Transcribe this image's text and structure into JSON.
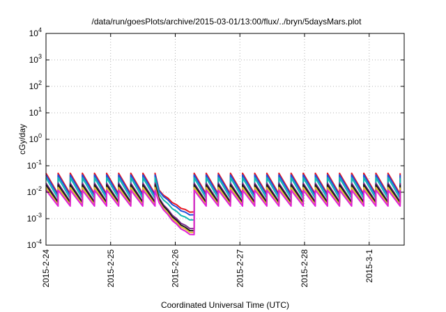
{
  "chart_data": {
    "type": "line",
    "title": "/data/run/goesPlots/archive/2015-03-01/13:00/flux/../bryn/5daysMars.plot",
    "xlabel": "Coordinated Universal Time (UTC)",
    "ylabel": "cGy/day",
    "y_scale": "log",
    "ylim": [
      0.0001,
      10000
    ],
    "xlim": [
      "2015-02-24T00:00",
      "2015-03-01T13:00"
    ],
    "grid": true,
    "x_tick_labels": [
      "2015-2-24",
      "2015-2-25",
      "2015-2-26",
      "2015-2-27",
      "2015-2-28",
      "2015-3-1"
    ],
    "y_tick_labels": [
      {
        "base": "10",
        "exp": "-4",
        "value": 0.0001
      },
      {
        "base": "10",
        "exp": "-3",
        "value": 0.001
      },
      {
        "base": "10",
        "exp": "-2",
        "value": 0.01
      },
      {
        "base": "10",
        "exp": "-1",
        "value": 0.1
      },
      {
        "base": "10",
        "exp": "0",
        "value": 1
      },
      {
        "base": "10",
        "exp": "1",
        "value": 10
      },
      {
        "base": "10",
        "exp": "2",
        "value": 100
      },
      {
        "base": "10",
        "exp": "3",
        "value": 1000
      },
      {
        "base": "10",
        "exp": "4",
        "value": 10000
      }
    ],
    "sawtooth_period_hours": 4.5,
    "gap": {
      "start": "2015-02-25T18:00",
      "end": "2015-02-26T07:00"
    },
    "series": [
      {
        "color": "#e8141e",
        "peak": 0.052,
        "trough": 0.0085,
        "gap_start": 0.012,
        "gap_end": 0.0018
      },
      {
        "color": "#1e50dc",
        "peak": 0.045,
        "trough": 0.0075,
        "gap_start": 0.011,
        "gap_end": 0.0014
      },
      {
        "color": "#10b8b0",
        "peak": 0.035,
        "trough": 0.0058,
        "gap_start": 0.0085,
        "gap_end": 0.0009
      },
      {
        "color": "#7a2a8a",
        "peak": 0.022,
        "trough": 0.0044,
        "gap_start": 0.006,
        "gap_end": 0.00042
      },
      {
        "color": "#1a1a1a",
        "peak": 0.019,
        "trough": 0.004,
        "gap_start": 0.0055,
        "gap_end": 0.00035
      },
      {
        "color": "#e0c030",
        "peak": 0.015,
        "trough": 0.0034,
        "gap_start": 0.0045,
        "gap_end": 0.0003
      },
      {
        "color": "#e020d8",
        "peak": 0.012,
        "trough": 0.003,
        "gap_start": 0.004,
        "gap_end": 0.00025
      }
    ]
  }
}
